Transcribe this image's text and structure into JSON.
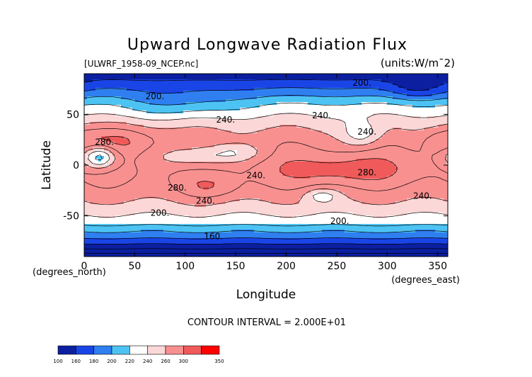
{
  "chart_data": {
    "type": "heatmap",
    "title": "Upward Longwave Radiation Flux",
    "file_label": "[ULWRF_1958-09_NCEP.nc]",
    "units_label": "(units:W/m^2)",
    "xlabel": "Longitude",
    "ylabel": "Latitude",
    "x_unit_label": "(degrees_east)",
    "y_unit_label": "(degrees_north)",
    "xlim": [
      0,
      360
    ],
    "ylim": [
      -90,
      90
    ],
    "x_ticks": [
      0,
      50,
      100,
      150,
      200,
      250,
      300,
      350
    ],
    "y_ticks": [
      -50,
      0,
      50
    ],
    "contour_interval_text": "CONTOUR INTERVAL = 2.000E+01",
    "colorbar": {
      "levels": [
        100,
        160,
        180,
        200,
        220,
        240,
        260,
        300,
        350
      ],
      "labels": [
        "100",
        "160",
        "180",
        "200",
        "220",
        "240",
        "260",
        "300",
        "350"
      ],
      "colors": [
        "#0b1fa0",
        "#1a45e6",
        "#2f7ff0",
        "#4dc3f3",
        "#ffffff",
        "#fcd7d7",
        "#f89090",
        "#f05a5a",
        "#ff0000"
      ]
    },
    "contour_labels": [
      {
        "text": "200.",
        "lon": 70,
        "lat": 65
      },
      {
        "text": "200.",
        "lon": 275,
        "lat": 78
      },
      {
        "text": "240.",
        "lon": 140,
        "lat": 42
      },
      {
        "text": "240.",
        "lon": 235,
        "lat": 46
      },
      {
        "text": "240.",
        "lon": 280,
        "lat": 30
      },
      {
        "text": "280.",
        "lon": 20,
        "lat": 20
      },
      {
        "text": "280.",
        "lon": 280,
        "lat": -10
      },
      {
        "text": "240.",
        "lon": 170,
        "lat": -13
      },
      {
        "text": "280.",
        "lon": 92,
        "lat": -25
      },
      {
        "text": "240.",
        "lon": 120,
        "lat": -38
      },
      {
        "text": "240.",
        "lon": 335,
        "lat": -33
      },
      {
        "text": "200.",
        "lon": 75,
        "lat": -50
      },
      {
        "text": "200.",
        "lon": 253,
        "lat": -58
      },
      {
        "text": "160.",
        "lon": 128,
        "lat": -73
      }
    ]
  }
}
